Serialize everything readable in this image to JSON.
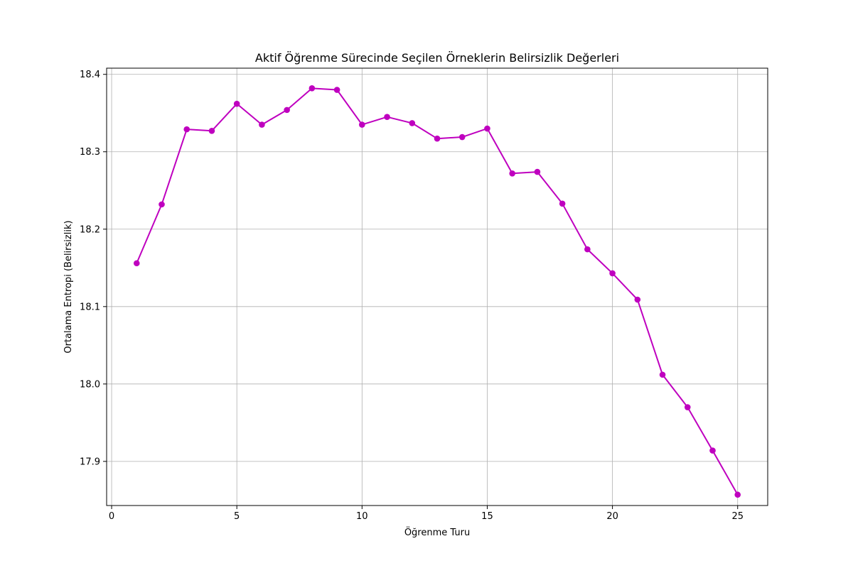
{
  "chart_data": {
    "type": "line",
    "title": "Aktif Öğrenme Sürecinde Seçilen Örneklerin Belirsizlik Değerleri",
    "xlabel": "Öğrenme Turu",
    "ylabel": "Ortalama Entropi (Belirsizlik)",
    "xlim": [
      -0.2,
      26.2
    ],
    "ylim": [
      17.843,
      18.408
    ],
    "xticks": [
      0,
      5,
      10,
      15,
      20,
      25
    ],
    "xtick_labels": [
      "0",
      "5",
      "10",
      "15",
      "20",
      "25"
    ],
    "yticks": [
      17.9,
      18.0,
      18.1,
      18.2,
      18.3,
      18.4
    ],
    "ytick_labels": [
      "17.9",
      "18.0",
      "18.1",
      "18.2",
      "18.3",
      "18.4"
    ],
    "grid": true,
    "color": "#bf00bf",
    "marker": "circle",
    "x": [
      1,
      2,
      3,
      4,
      5,
      6,
      7,
      8,
      9,
      10,
      11,
      12,
      13,
      14,
      15,
      16,
      17,
      18,
      19,
      20,
      21,
      22,
      23,
      24,
      25
    ],
    "y": [
      18.156,
      18.232,
      18.329,
      18.327,
      18.362,
      18.335,
      18.354,
      18.382,
      18.38,
      18.335,
      18.345,
      18.337,
      18.317,
      18.319,
      18.33,
      18.272,
      18.274,
      18.233,
      18.174,
      18.143,
      18.109,
      18.012,
      17.97,
      17.914,
      17.857
    ]
  }
}
